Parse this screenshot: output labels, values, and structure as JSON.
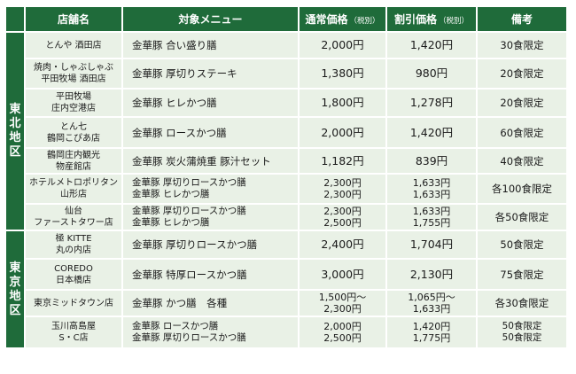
{
  "headers": {
    "shop": "店舗名",
    "menu": "対象メニュー",
    "regular": "通常価格",
    "regular_tax": "（税別）",
    "discount": "割引価格",
    "discount_tax": "（税別）",
    "note": "備考"
  },
  "regions": {
    "tohoku": "東北地区",
    "tokyo": "東京地区"
  },
  "rows": [
    {
      "shop": [
        "とんや 酒田店"
      ],
      "menu": [
        "金華豚 合い盛り膳"
      ],
      "regular": [
        "2,000円"
      ],
      "discount": [
        "1,420円"
      ],
      "note": [
        "30食限定"
      ]
    },
    {
      "shop": [
        "焼肉・しゃぶしゃぶ",
        "平田牧場 酒田店"
      ],
      "menu": [
        "金華豚 厚切りステーキ"
      ],
      "regular": [
        "1,380円"
      ],
      "discount": [
        "980円"
      ],
      "note": [
        "20食限定"
      ]
    },
    {
      "shop": [
        "平田牧場",
        "庄内空港店"
      ],
      "menu": [
        "金華豚 ヒレかつ膳"
      ],
      "regular": [
        "1,800円"
      ],
      "discount": [
        "1,278円"
      ],
      "note": [
        "20食限定"
      ]
    },
    {
      "shop": [
        "とん七",
        "鶴岡こぴあ店"
      ],
      "menu": [
        "金華豚 ロースかつ膳"
      ],
      "regular": [
        "2,000円"
      ],
      "discount": [
        "1,420円"
      ],
      "note": [
        "60食限定"
      ]
    },
    {
      "shop": [
        "鶴岡庄内観光",
        "物産館店"
      ],
      "menu": [
        "金華豚 炭火蒲焼重 豚汁セット"
      ],
      "regular": [
        "1,182円"
      ],
      "discount": [
        "839円"
      ],
      "note": [
        "40食限定"
      ]
    },
    {
      "shop": [
        "ホテルメトロポリタン",
        "山形店"
      ],
      "menu": [
        "金華豚 厚切りロースかつ膳",
        "金華豚 ヒレかつ膳"
      ],
      "regular": [
        "2,300円",
        "2,300円"
      ],
      "discount": [
        "1,633円",
        "1,633円"
      ],
      "note": [
        "各100食限定"
      ]
    },
    {
      "shop": [
        "仙台",
        "ファーストタワー店"
      ],
      "menu": [
        "金華豚 厚切りロースかつ膳",
        "金華豚 ヒレかつ膳"
      ],
      "regular": [
        "2,300円",
        "2,500円"
      ],
      "discount": [
        "1,633円",
        "1,755円"
      ],
      "note": [
        "各50食限定"
      ]
    },
    {
      "shop": [
        "極 KITTE",
        "丸の内店"
      ],
      "menu": [
        "金華豚 厚切りロースかつ膳"
      ],
      "regular": [
        "2,400円"
      ],
      "discount": [
        "1,704円"
      ],
      "note": [
        "50食限定"
      ]
    },
    {
      "shop": [
        "COREDO",
        "日本橋店"
      ],
      "menu": [
        "金華豚 特厚ロースかつ膳"
      ],
      "regular": [
        "3,000円"
      ],
      "discount": [
        "2,130円"
      ],
      "note": [
        "75食限定"
      ]
    },
    {
      "shop": [
        "東京ミッドタウン店"
      ],
      "menu": [
        "金華豚 かつ膳　各種"
      ],
      "regular": [
        "1,500円～",
        "2,300円"
      ],
      "discount": [
        "1,065円～",
        "1,633円"
      ],
      "note": [
        "各30食限定"
      ]
    },
    {
      "shop": [
        "玉川高島屋",
        "S・C店"
      ],
      "menu": [
        "金華豚 ロースかつ膳",
        "金華豚 厚切りロースかつ膳"
      ],
      "regular": [
        "2,000円",
        "2,500円"
      ],
      "discount": [
        "1,420円",
        "1,775円"
      ],
      "note": [
        "50食限定",
        "50食限定"
      ]
    }
  ]
}
